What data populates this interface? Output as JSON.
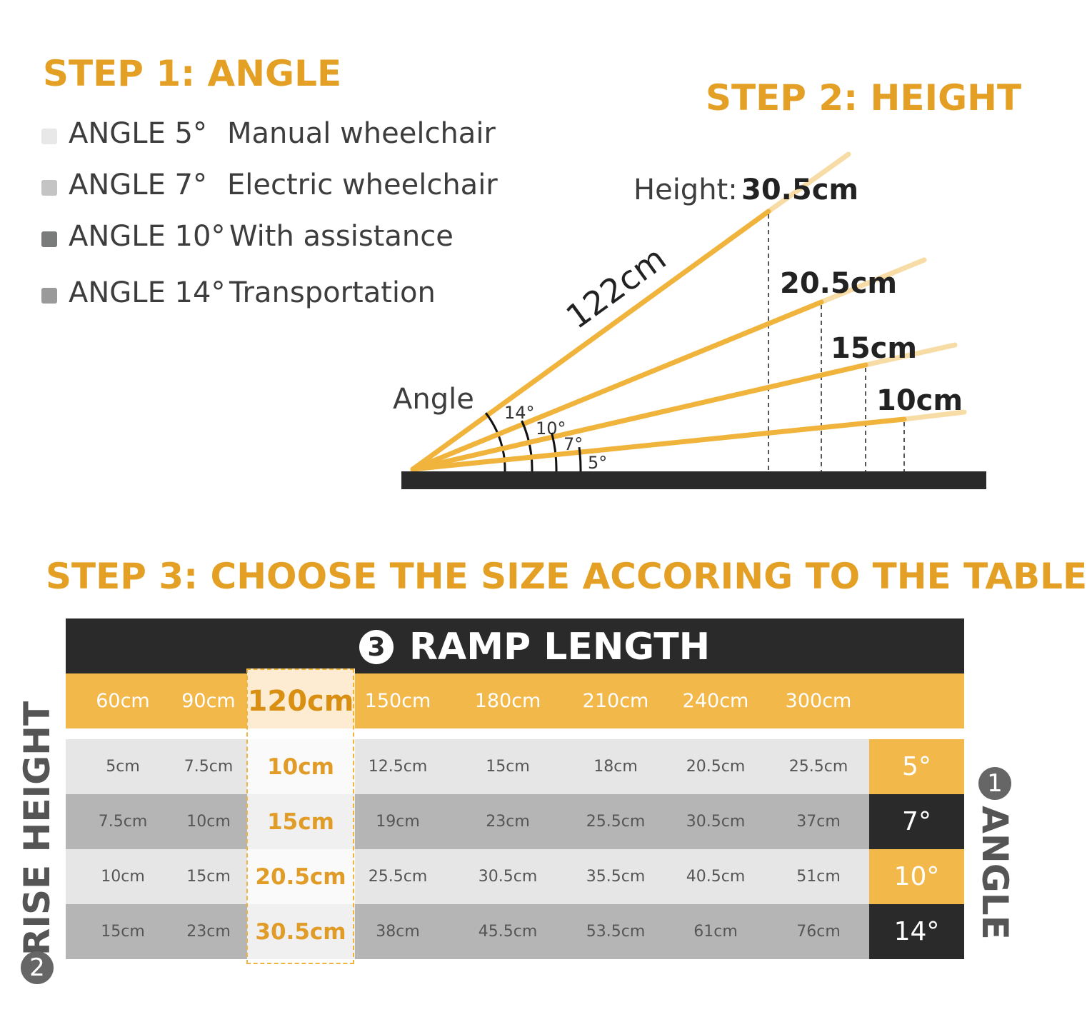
{
  "step1": {
    "title": "STEP 1: ANGLE",
    "items": [
      {
        "angle": "ANGLE 5°",
        "use": "Manual wheelchair",
        "color": "#e8e8e8"
      },
      {
        "angle": "ANGLE 7°",
        "use": "Electric wheelchair",
        "color": "#c4c4c4"
      },
      {
        "angle": "ANGLE 10°",
        "use": "With assistance",
        "color": "#7a7c7c"
      },
      {
        "angle": "ANGLE 14°",
        "use": "Transportation",
        "color": "#9a9a9a"
      }
    ]
  },
  "step2": {
    "title": "STEP 2: HEIGHT",
    "height_label": "Height:",
    "length_label": "122cm",
    "angle_label": "Angle",
    "heights": [
      "30.5cm",
      "20.5cm",
      "15cm",
      "10cm"
    ],
    "angles": [
      "14°",
      "10°",
      "7°",
      "5°"
    ],
    "ramp_color": "#f0b43c",
    "ramp_extension_color": "#f8dca6"
  },
  "step3": {
    "title": "STEP 3: CHOOSE THE SIZE ACCORING TO THE TABLE",
    "ramp_length_label": "RAMP LENGTH",
    "ramp_length_number": "3",
    "rise_height_label": "RISE HEIGHT",
    "rise_height_number": "2",
    "angle_label": "ANGLE",
    "angle_number": "1",
    "lengths": [
      "60cm",
      "90cm",
      "120cm",
      "150cm",
      "180cm",
      "210cm",
      "240cm",
      "300cm"
    ],
    "highlighted_length": "120cm",
    "rows": [
      {
        "angle": "5°",
        "values": [
          "5cm",
          "7.5cm",
          "10cm",
          "12.5cm",
          "15cm",
          "18cm",
          "20.5cm",
          "25.5cm"
        ]
      },
      {
        "angle": "7°",
        "values": [
          "7.5cm",
          "10cm",
          "15cm",
          "19cm",
          "23cm",
          "25.5cm",
          "30.5cm",
          "37cm"
        ]
      },
      {
        "angle": "10°",
        "values": [
          "10cm",
          "15cm",
          "20.5cm",
          "25.5cm",
          "30.5cm",
          "35.5cm",
          "40.5cm",
          "51cm"
        ]
      },
      {
        "angle": "14°",
        "values": [
          "15cm",
          "23cm",
          "30.5cm",
          "38cm",
          "45.5cm",
          "53.5cm",
          "61cm",
          "76cm"
        ]
      }
    ],
    "colors": {
      "accent": "#f2b84a",
      "dark": "#2a2a2a",
      "light_row": "#e6e6e6",
      "dark_row": "#b5b5b5"
    }
  }
}
